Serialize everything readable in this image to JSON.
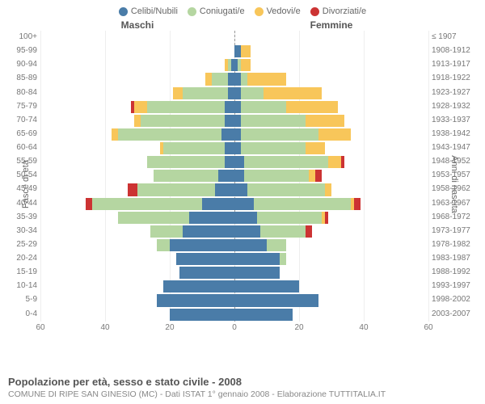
{
  "legend": [
    {
      "label": "Celibi/Nubili",
      "color": "#4a7ca8"
    },
    {
      "label": "Coniugati/e",
      "color": "#b5d6a1"
    },
    {
      "label": "Vedovi/e",
      "color": "#f8c65a"
    },
    {
      "label": "Divorziati/e",
      "color": "#cc3333"
    }
  ],
  "headers": {
    "male": "Maschi",
    "female": "Femmine"
  },
  "y_left_title": "Fasce di età",
  "y_right_title": "Anni di nascita",
  "age_labels": [
    "100+",
    "95-99",
    "90-94",
    "85-89",
    "80-84",
    "75-79",
    "70-74",
    "65-69",
    "60-64",
    "55-59",
    "50-54",
    "45-49",
    "40-44",
    "35-39",
    "30-34",
    "25-29",
    "20-24",
    "15-19",
    "10-14",
    "5-9",
    "0-4"
  ],
  "year_labels": [
    "≤ 1907",
    "1908-1912",
    "1913-1917",
    "1918-1922",
    "1923-1927",
    "1928-1932",
    "1933-1937",
    "1938-1942",
    "1943-1947",
    "1948-1952",
    "1953-1957",
    "1958-1962",
    "1963-1967",
    "1968-1972",
    "1973-1977",
    "1978-1982",
    "1983-1987",
    "1988-1992",
    "1993-1997",
    "1998-2002",
    "2003-2007"
  ],
  "xmax": 60,
  "x_ticks": [
    60,
    40,
    20,
    0,
    20,
    40,
    60
  ],
  "x_tick_positions": [
    0,
    16.67,
    33.33,
    50,
    66.67,
    83.33,
    100
  ],
  "colors": {
    "celibi": "#4a7ca8",
    "coniugati": "#b5d6a1",
    "vedovi": "#f8c65a",
    "divorziati": "#cc3333",
    "grid": "#eeeeee",
    "center_line": "#999999",
    "text": "#777777",
    "background": "#ffffff"
  },
  "bars": [
    {
      "male": {
        "cel": 0,
        "con": 0,
        "ved": 0,
        "div": 0
      },
      "female": {
        "cel": 0,
        "con": 0,
        "ved": 0,
        "div": 0
      }
    },
    {
      "male": {
        "cel": 0,
        "con": 0,
        "ved": 0,
        "div": 0
      },
      "female": {
        "cel": 2,
        "con": 0,
        "ved": 3,
        "div": 0
      }
    },
    {
      "male": {
        "cel": 1,
        "con": 1,
        "ved": 1,
        "div": 0
      },
      "female": {
        "cel": 1,
        "con": 1,
        "ved": 3,
        "div": 0
      }
    },
    {
      "male": {
        "cel": 2,
        "con": 5,
        "ved": 2,
        "div": 0
      },
      "female": {
        "cel": 2,
        "con": 2,
        "ved": 12,
        "div": 0
      }
    },
    {
      "male": {
        "cel": 2,
        "con": 14,
        "ved": 3,
        "div": 0
      },
      "female": {
        "cel": 2,
        "con": 7,
        "ved": 18,
        "div": 0
      }
    },
    {
      "male": {
        "cel": 3,
        "con": 24,
        "ved": 4,
        "div": 1
      },
      "female": {
        "cel": 2,
        "con": 14,
        "ved": 16,
        "div": 0
      }
    },
    {
      "male": {
        "cel": 3,
        "con": 26,
        "ved": 2,
        "div": 0
      },
      "female": {
        "cel": 2,
        "con": 20,
        "ved": 12,
        "div": 0
      }
    },
    {
      "male": {
        "cel": 4,
        "con": 32,
        "ved": 2,
        "div": 0
      },
      "female": {
        "cel": 2,
        "con": 24,
        "ved": 10,
        "div": 0
      }
    },
    {
      "male": {
        "cel": 3,
        "con": 19,
        "ved": 1,
        "div": 0
      },
      "female": {
        "cel": 2,
        "con": 20,
        "ved": 6,
        "div": 0
      }
    },
    {
      "male": {
        "cel": 3,
        "con": 24,
        "ved": 0,
        "div": 0
      },
      "female": {
        "cel": 3,
        "con": 26,
        "ved": 4,
        "div": 1
      }
    },
    {
      "male": {
        "cel": 5,
        "con": 20,
        "ved": 0,
        "div": 0
      },
      "female": {
        "cel": 3,
        "con": 20,
        "ved": 2,
        "div": 2
      }
    },
    {
      "male": {
        "cel": 6,
        "con": 24,
        "ved": 0,
        "div": 3
      },
      "female": {
        "cel": 4,
        "con": 24,
        "ved": 2,
        "div": 0
      }
    },
    {
      "male": {
        "cel": 10,
        "con": 34,
        "ved": 0,
        "div": 2
      },
      "female": {
        "cel": 6,
        "con": 30,
        "ved": 1,
        "div": 2
      }
    },
    {
      "male": {
        "cel": 14,
        "con": 22,
        "ved": 0,
        "div": 0
      },
      "female": {
        "cel": 7,
        "con": 20,
        "ved": 1,
        "div": 1
      }
    },
    {
      "male": {
        "cel": 16,
        "con": 10,
        "ved": 0,
        "div": 0
      },
      "female": {
        "cel": 8,
        "con": 14,
        "ved": 0,
        "div": 2
      }
    },
    {
      "male": {
        "cel": 20,
        "con": 4,
        "ved": 0,
        "div": 0
      },
      "female": {
        "cel": 10,
        "con": 6,
        "ved": 0,
        "div": 0
      }
    },
    {
      "male": {
        "cel": 18,
        "con": 0,
        "ved": 0,
        "div": 0
      },
      "female": {
        "cel": 14,
        "con": 2,
        "ved": 0,
        "div": 0
      }
    },
    {
      "male": {
        "cel": 17,
        "con": 0,
        "ved": 0,
        "div": 0
      },
      "female": {
        "cel": 14,
        "con": 0,
        "ved": 0,
        "div": 0
      }
    },
    {
      "male": {
        "cel": 22,
        "con": 0,
        "ved": 0,
        "div": 0
      },
      "female": {
        "cel": 20,
        "con": 0,
        "ved": 0,
        "div": 0
      }
    },
    {
      "male": {
        "cel": 24,
        "con": 0,
        "ved": 0,
        "div": 0
      },
      "female": {
        "cel": 26,
        "con": 0,
        "ved": 0,
        "div": 0
      }
    },
    {
      "male": {
        "cel": 20,
        "con": 0,
        "ved": 0,
        "div": 0
      },
      "female": {
        "cel": 18,
        "con": 0,
        "ved": 0,
        "div": 0
      }
    }
  ],
  "footer": {
    "title": "Popolazione per età, sesso e stato civile - 2008",
    "subtitle": "COMUNE DI RIPE SAN GINESIO (MC) - Dati ISTAT 1° gennaio 2008 - Elaborazione TUTTITALIA.IT"
  }
}
